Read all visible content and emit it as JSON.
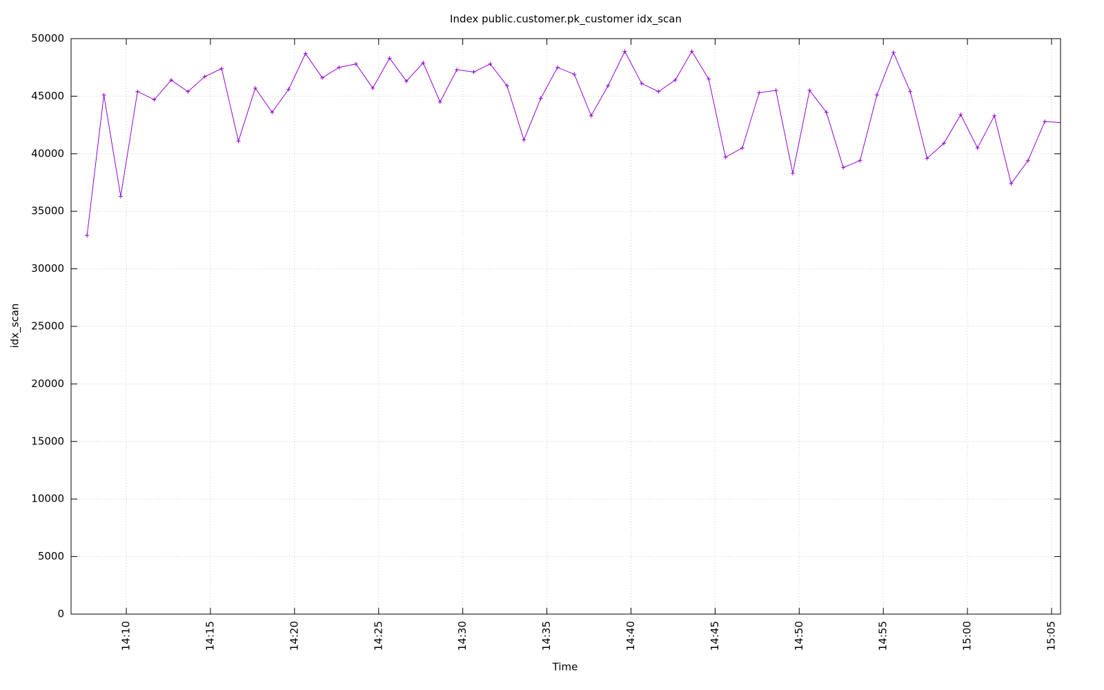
{
  "chart_data": {
    "type": "line",
    "title": "Index public.customer.pk_customer idx_scan",
    "x_label": "Time",
    "y_label": "idx_scan",
    "x": [
      "14:07:40",
      "14:08:40",
      "14:09:40",
      "14:10:40",
      "14:11:40",
      "14:12:40",
      "14:13:40",
      "14:14:40",
      "14:15:40",
      "14:16:40",
      "14:17:40",
      "14:18:40",
      "14:19:39",
      "14:20:39",
      "14:21:39",
      "14:22:39",
      "14:23:39",
      "14:24:39",
      "14:25:39",
      "14:26:39",
      "14:27:39",
      "14:28:39",
      "14:29:39",
      "14:30:39",
      "14:31:38",
      "14:32:38",
      "14:33:38",
      "14:34:38",
      "14:35:38",
      "14:36:38",
      "14:37:38",
      "14:38:38",
      "14:39:38",
      "14:40:38",
      "14:41:38",
      "14:42:38",
      "14:43:37",
      "14:44:37",
      "14:45:37",
      "14:46:37",
      "14:47:37",
      "14:48:37",
      "14:49:37",
      "14:50:37",
      "14:51:37",
      "14:52:37",
      "14:53:37",
      "14:54:37",
      "14:55:36",
      "14:56:36",
      "14:57:36",
      "14:58:36",
      "14:59:36",
      "15:00:36",
      "15:01:36",
      "15:02:36",
      "15:03:36",
      "15:04:36",
      "15:05:36"
    ],
    "series": [
      {
        "name": "idx_scan",
        "color": "#9400d3",
        "values": [
          32900,
          45100,
          36300,
          45400,
          44700,
          46400,
          45400,
          46700,
          47400,
          41100,
          45700,
          43600,
          45600,
          48700,
          46600,
          47500,
          47800,
          45700,
          48300,
          46300,
          47900,
          44500,
          47300,
          47100,
          47800,
          45900,
          41200,
          44800,
          47500,
          46900,
          43300,
          45900,
          48900,
          46100,
          45400,
          46400,
          48900,
          46500,
          39700,
          40500,
          45300,
          45500,
          38300,
          45500,
          43600,
          38800,
          39400,
          45100,
          48800,
          45400,
          39600,
          40900,
          43400,
          40500,
          43300,
          37400,
          39400,
          42800,
          42700
        ]
      }
    ],
    "xlim": [
      "14:06:43",
      "15:05:32"
    ],
    "xticks": [
      "14:10",
      "14:15",
      "14:20",
      "14:25",
      "14:30",
      "14:35",
      "14:40",
      "14:45",
      "14:50",
      "14:55",
      "15:00",
      "15:05"
    ],
    "ylim": [
      0,
      50000
    ],
    "yticks": [
      0,
      5000,
      10000,
      15000,
      20000,
      25000,
      30000,
      35000,
      40000,
      45000,
      50000
    ],
    "grid": true
  }
}
